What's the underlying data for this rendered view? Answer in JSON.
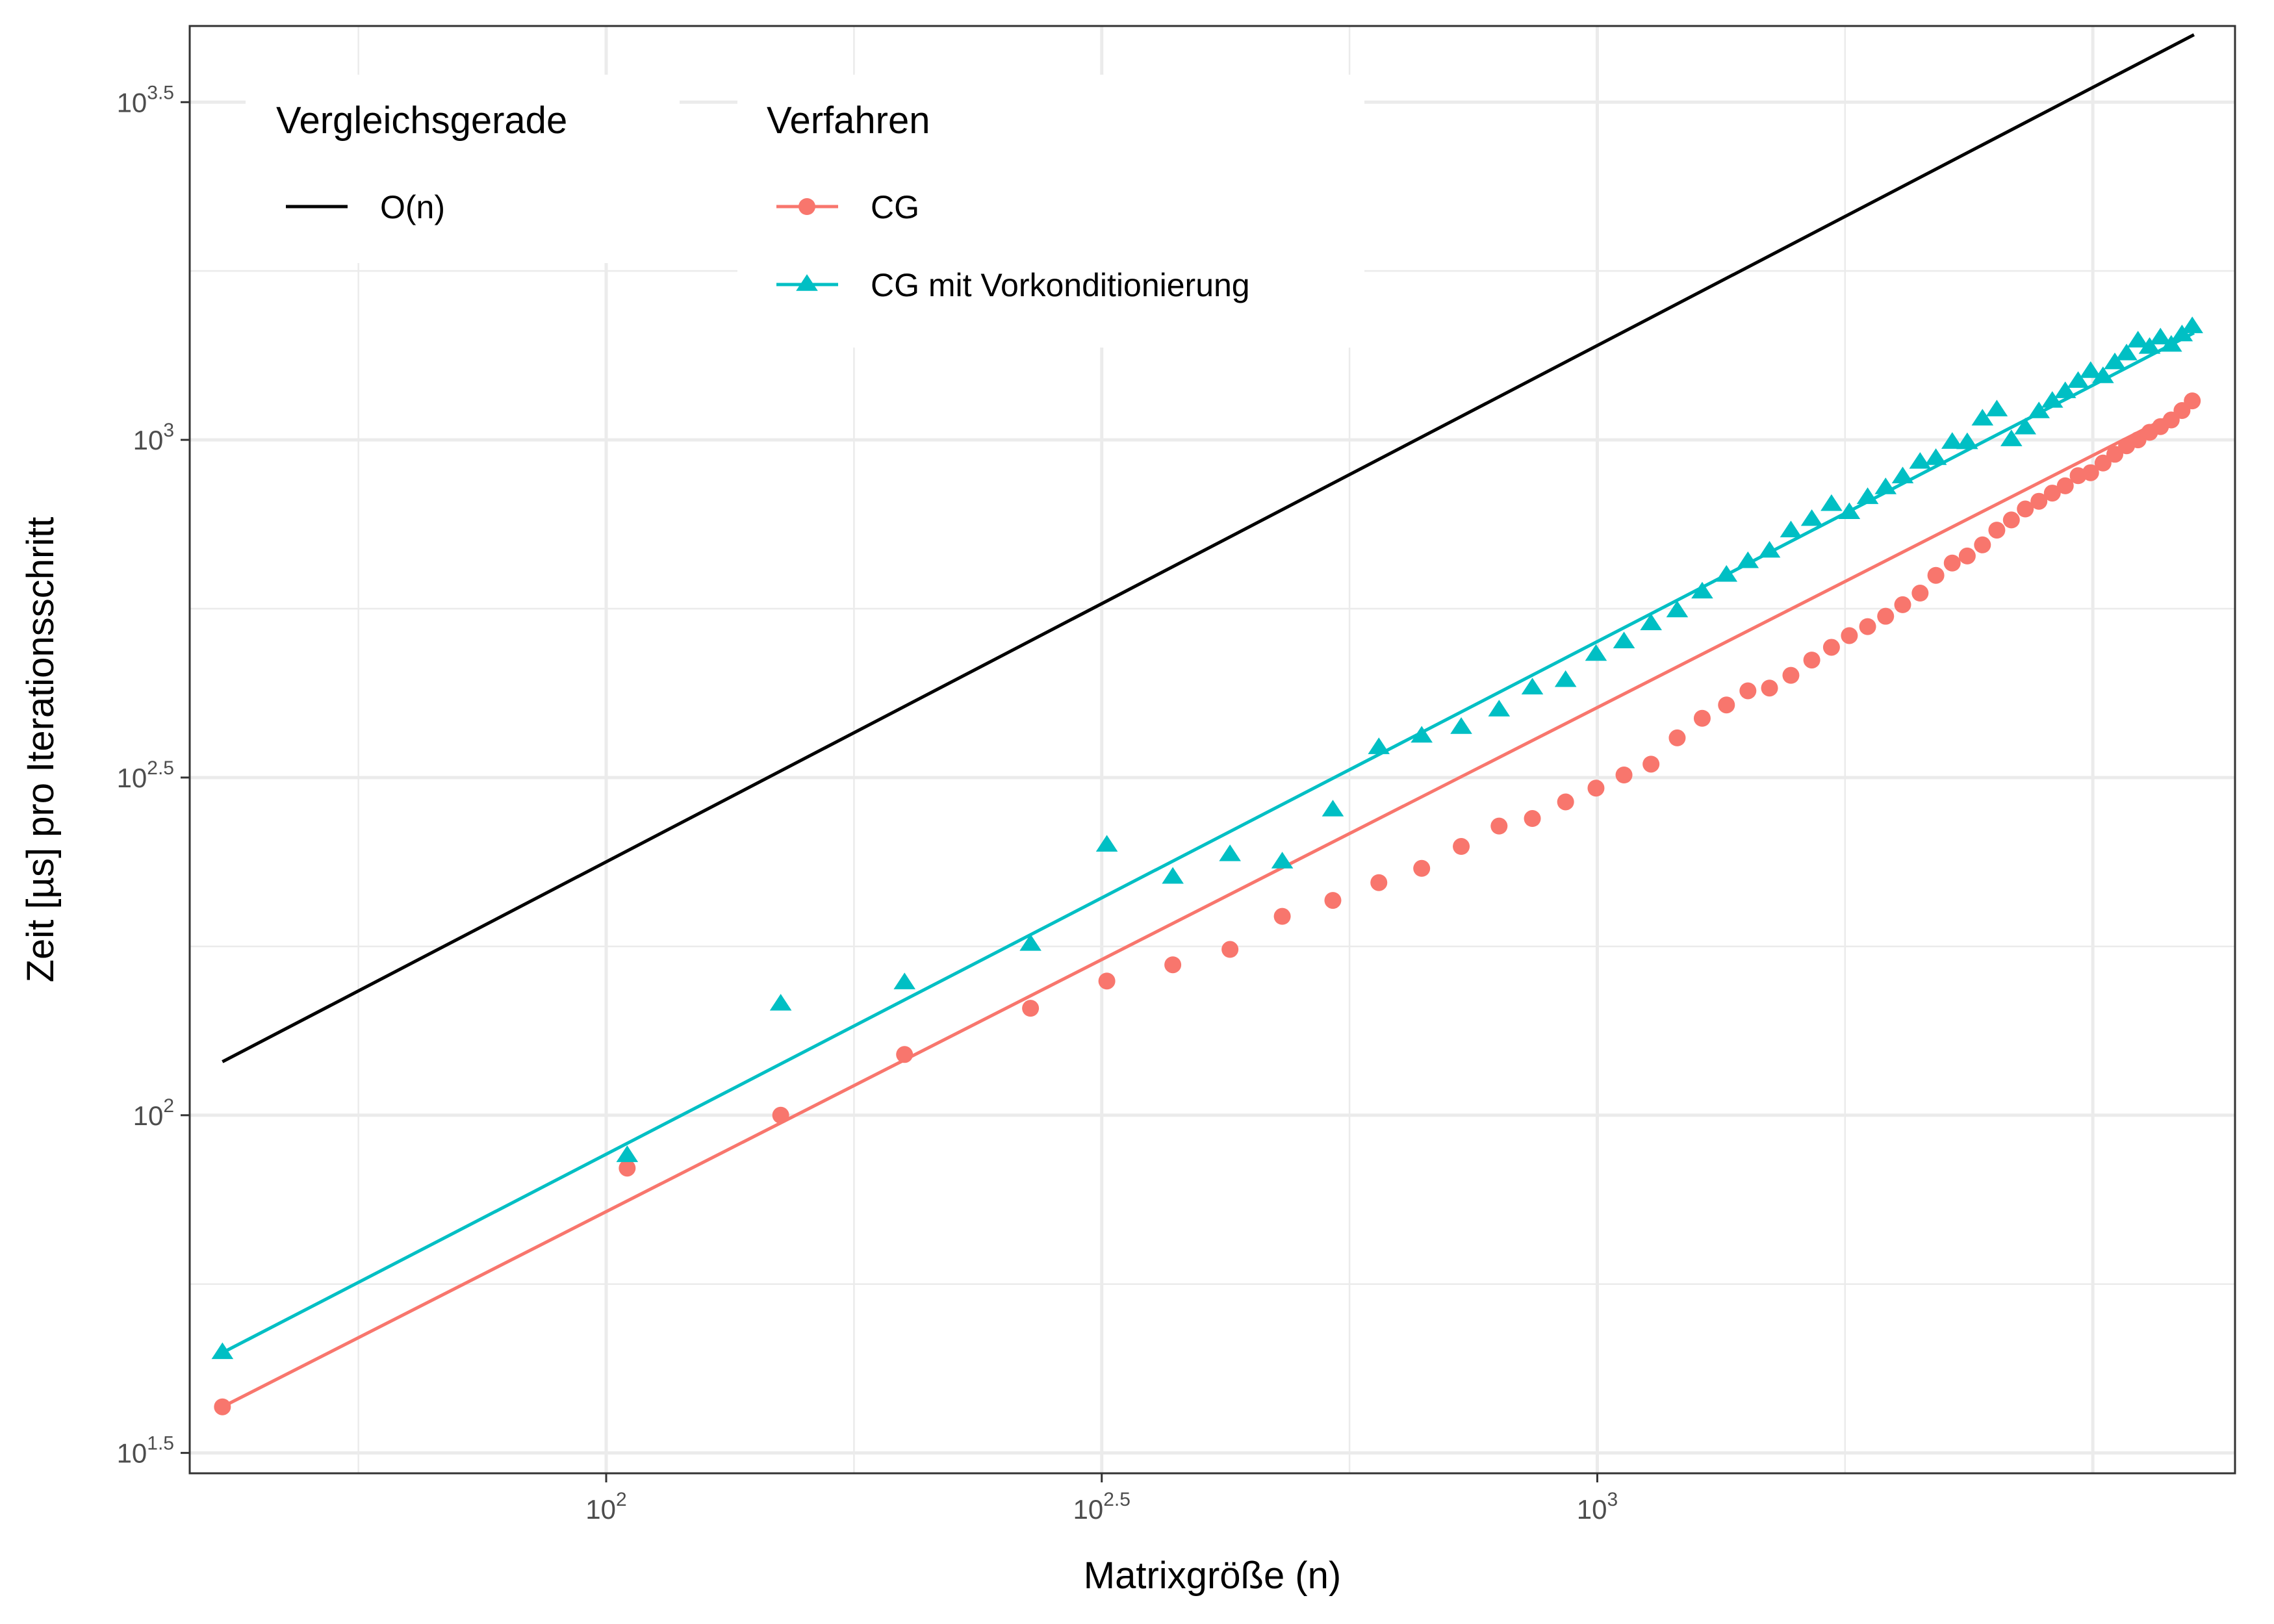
{
  "chart_data": {
    "type": "scatter",
    "xlabel": "Matrixgröße (n)",
    "ylabel": "Zeit [µs] pro Iterationsschritt",
    "xscale": "log10",
    "yscale": "log10",
    "xlim": [
      38,
      4400
    ],
    "ylim": [
      29.5,
      4100
    ],
    "x_ticks": [
      {
        "value": 100,
        "base": "10",
        "exp": "2"
      },
      {
        "value": 316.228,
        "base": "10",
        "exp": "2.5"
      },
      {
        "value": 1000,
        "base": "10",
        "exp": "3"
      }
    ],
    "y_ticks": [
      {
        "value": 31.623,
        "base": "10",
        "exp": "1.5"
      },
      {
        "value": 100,
        "base": "10",
        "exp": "2"
      },
      {
        "value": 316.228,
        "base": "10",
        "exp": "2.5"
      },
      {
        "value": 1000,
        "base": "10",
        "exp": "3"
      },
      {
        "value": 3162.278,
        "base": "10",
        "exp": "3.5"
      }
    ],
    "grid": true,
    "legend": {
      "placement": "top-left inside",
      "groups": [
        {
          "title": "Vergleichsgerade",
          "entries": [
            {
              "label": "O(n)",
              "color": "#000000",
              "shape": "line"
            }
          ]
        },
        {
          "title": "Verfahren",
          "entries": [
            {
              "label": "CG",
              "color": "#F8766D",
              "shape": "circle"
            },
            {
              "label": "CG mit Vorkonditionierung",
              "color": "#00BFC4",
              "shape": "triangle"
            }
          ]
        }
      ]
    },
    "reference_line": {
      "name": "O(n)",
      "color": "#000000",
      "x": [
        41,
        4000
      ],
      "y": [
        120,
        3980
      ]
    },
    "series": [
      {
        "name": "CG",
        "color": "#F8766D",
        "shape": "circle",
        "fit_line": {
          "x": [
            41,
            4000
          ],
          "y": [
            37.0,
            1130
          ]
        },
        "x": [
          41,
          105,
          150,
          200,
          268,
          320,
          373,
          426,
          481,
          541,
          602,
          665,
          729,
          796,
          860,
          929,
          997,
          1064,
          1133,
          1204,
          1276,
          1350,
          1419,
          1492,
          1568,
          1646,
          1723,
          1796,
          1874,
          1954,
          2033,
          2117,
          2196,
          2281,
          2362,
          2447,
          2530,
          2617,
          2703,
          2790,
          2878,
          2966,
          3056,
          3146,
          3238,
          3328,
          3420,
          3512,
          3608,
          3700,
          3794,
          3890,
          3984
        ],
        "y": [
          37.0,
          83.5,
          100,
          123,
          144,
          158,
          167,
          176,
          197,
          208,
          221,
          232,
          250,
          268,
          275,
          291,
          305,
          319,
          331,
          362,
          387,
          405,
          425,
          429,
          448,
          472,
          493,
          513,
          529,
          548,
          570,
          593,
          630,
          657,
          673,
          699,
          735,
          761,
          790,
          811,
          834,
          855,
          885,
          894,
          924,
          952,
          980,
          1000,
          1026,
          1046,
          1070,
          1105,
          1142
        ]
      },
      {
        "name": "CG mit Vorkonditionierung",
        "color": "#00BFC4",
        "shape": "triangle",
        "fit_line": {
          "x": [
            41,
            4000
          ],
          "y": [
            44.5,
            1440
          ]
        },
        "x": [
          41,
          105,
          150,
          200,
          268,
          320,
          373,
          426,
          481,
          541,
          602,
          665,
          729,
          796,
          860,
          929,
          997,
          1064,
          1133,
          1204,
          1276,
          1350,
          1419,
          1492,
          1568,
          1646,
          1723,
          1796,
          1874,
          1954,
          2033,
          2117,
          2196,
          2281,
          2362,
          2447,
          2530,
          2617,
          2703,
          2790,
          2878,
          2966,
          3056,
          3146,
          3238,
          3328,
          3420,
          3512,
          3608,
          3700,
          3794,
          3890,
          3984
        ],
        "y": [
          44.5,
          87.1,
          146,
          157,
          179,
          251,
          225,
          243,
          237,
          283,
          350,
          364,
          375,
          398,
          429,
          440,
          481,
          502,
          534,
          558,
          595,
          630,
          660,
          684,
          733,
          762,
          802,
          780,
          821,
          849,
          881,
          926,
          938,
          991,
          990,
          1073,
          1107,
          1000,
          1041,
          1100,
          1140,
          1178,
          1220,
          1262,
          1240,
          1300,
          1340,
          1400,
          1370,
          1415,
          1380,
          1430,
          1470
        ]
      }
    ]
  }
}
